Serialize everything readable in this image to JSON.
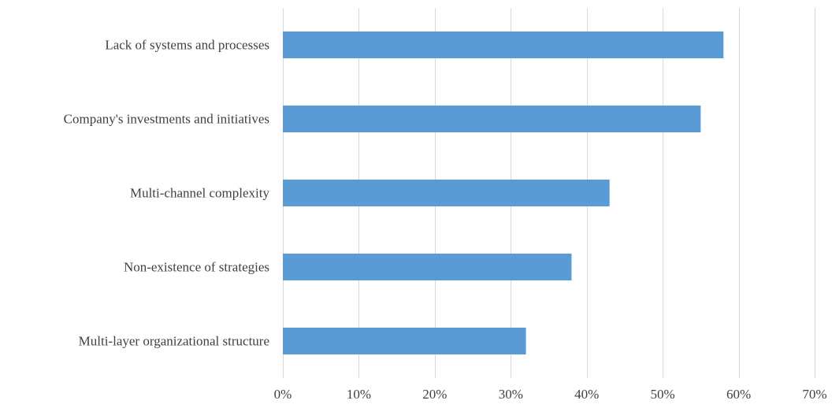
{
  "chart_data": {
    "type": "bar",
    "orientation": "horizontal",
    "title": "",
    "xlabel": "",
    "ylabel": "",
    "categories": [
      "Lack of systems and processes",
      "Company's investments and initiatives",
      "Multi-channel complexity",
      "Non-existence of strategies",
      "Multi-layer organizational structure"
    ],
    "values": [
      58,
      55,
      43,
      38,
      32
    ],
    "value_unit": "%",
    "xlim": [
      0,
      70
    ],
    "xticks": [
      0,
      10,
      20,
      30,
      40,
      50,
      60,
      70
    ],
    "xtick_labels": [
      "0%",
      "10%",
      "20%",
      "30%",
      "40%",
      "50%",
      "60%",
      "70%"
    ],
    "grid": "vertical",
    "legend": "none",
    "bar_color": "#5b9bd5"
  }
}
